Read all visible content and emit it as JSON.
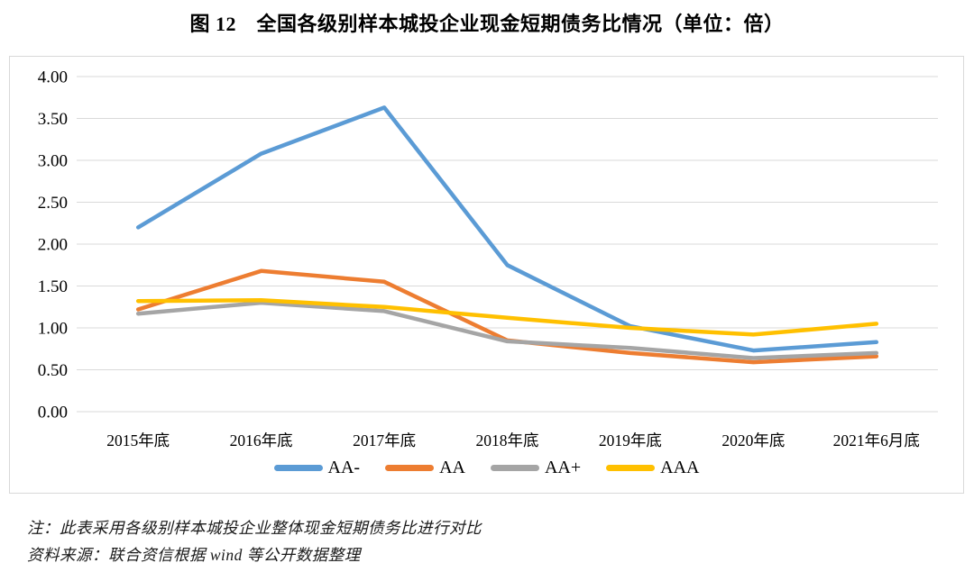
{
  "figure": {
    "notes": [
      "注：此表采用各级别样本城投企业整体现金短期债务比进行对比",
      "资料来源：联合资信根据 wind 等公开数据整理"
    ]
  },
  "colors": {
    "gridline": "#d9d9d9",
    "chart_border": "#d9d9d9",
    "text": "#000000",
    "background": "#ffffff"
  },
  "chart_data": {
    "type": "line",
    "title": "图 12　全国各级别样本城投企业现金短期债务比情况（单位：倍）",
    "categories": [
      "2015年底",
      "2016年底",
      "2017年底",
      "2018年底",
      "2019年底",
      "2020年底",
      "2021年6月底"
    ],
    "series": [
      {
        "name": "AA-",
        "color": "#5B9BD5",
        "values": [
          2.2,
          3.08,
          3.63,
          1.75,
          1.02,
          0.73,
          0.83
        ]
      },
      {
        "name": "AA",
        "color": "#ED7D31",
        "values": [
          1.22,
          1.68,
          1.55,
          0.85,
          0.7,
          0.59,
          0.66
        ]
      },
      {
        "name": "AA+",
        "color": "#A5A5A5",
        "values": [
          1.17,
          1.3,
          1.2,
          0.84,
          0.76,
          0.64,
          0.7
        ]
      },
      {
        "name": "AAA",
        "color": "#FFC000",
        "values": [
          1.32,
          1.33,
          1.25,
          1.12,
          1.0,
          0.92,
          1.05
        ]
      }
    ],
    "xlabel": "",
    "ylabel": "",
    "ylim": [
      0.0,
      4.0
    ],
    "ytick_step": 0.5,
    "ytick_labels": [
      "0.00",
      "0.50",
      "1.00",
      "1.50",
      "2.00",
      "2.50",
      "3.00",
      "3.50",
      "4.00"
    ],
    "grid": true,
    "legend_position": "bottom",
    "unit": "倍"
  }
}
